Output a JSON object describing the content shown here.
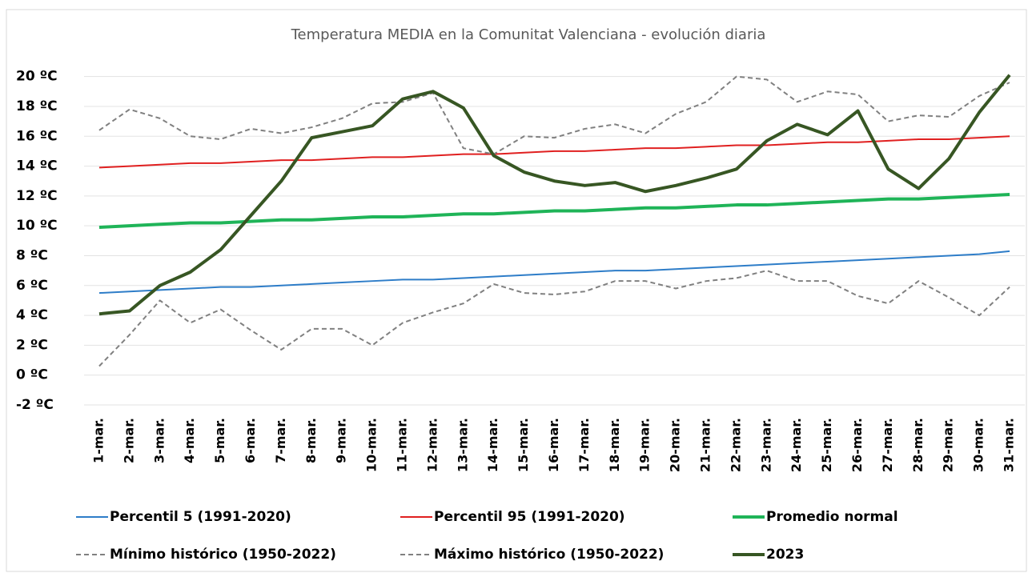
{
  "chart_data": {
    "type": "line",
    "title": "Temperatura MEDIA en la Comunitat Valenciana - evolución diaria",
    "categories": [
      "1-mar.",
      "2-mar.",
      "3-mar.",
      "4-mar.",
      "5-mar.",
      "6-mar.",
      "7-mar.",
      "8-mar.",
      "9-mar.",
      "10-mar.",
      "11-mar.",
      "12-mar.",
      "13-mar.",
      "14-mar.",
      "15-mar.",
      "16-mar.",
      "17-mar.",
      "18-mar.",
      "19-mar.",
      "20-mar.",
      "21-mar.",
      "22-mar.",
      "23-mar.",
      "24-mar.",
      "25-mar.",
      "26-mar.",
      "27-mar.",
      "28-mar.",
      "29-mar.",
      "30-mar.",
      "31-mar."
    ],
    "ylim": [
      -2,
      21
    ],
    "yticks": [
      {
        "value": -2,
        "label": "-2 ºC"
      },
      {
        "value": 0,
        "label": "0 ºC"
      },
      {
        "value": 2,
        "label": "2 ºC"
      },
      {
        "value": 4,
        "label": "4 ºC"
      },
      {
        "value": 6,
        "label": "6 ºC"
      },
      {
        "value": 8,
        "label": "8 ºC"
      },
      {
        "value": 10,
        "label": "10 ºC"
      },
      {
        "value": 12,
        "label": "12 ºC"
      },
      {
        "value": 14,
        "label": "14 ºC"
      },
      {
        "value": 16,
        "label": "16 ºC"
      },
      {
        "value": 18,
        "label": "18 ºC"
      },
      {
        "value": 20,
        "label": "20 ºC"
      }
    ],
    "grid": true,
    "series": [
      {
        "name": "Percentil 5 (1991-2020)",
        "color": "#2e7dc8",
        "width": 2,
        "dashed": false,
        "values": [
          5.5,
          5.6,
          5.7,
          5.8,
          5.9,
          5.9,
          6.0,
          6.1,
          6.2,
          6.3,
          6.4,
          6.4,
          6.5,
          6.6,
          6.7,
          6.8,
          6.9,
          7.0,
          7.0,
          7.1,
          7.2,
          7.3,
          7.4,
          7.5,
          7.6,
          7.7,
          7.8,
          7.9,
          8.0,
          8.1,
          8.3
        ]
      },
      {
        "name": "Percentil 95 (1991-2020)",
        "color": "#e02020",
        "width": 2,
        "dashed": false,
        "values": [
          13.9,
          14.0,
          14.1,
          14.2,
          14.2,
          14.3,
          14.4,
          14.4,
          14.5,
          14.6,
          14.6,
          14.7,
          14.8,
          14.8,
          14.9,
          15.0,
          15.0,
          15.1,
          15.2,
          15.2,
          15.3,
          15.4,
          15.4,
          15.5,
          15.6,
          15.6,
          15.7,
          15.8,
          15.8,
          15.9,
          16.0
        ]
      },
      {
        "name": "Promedio normal",
        "color": "#1fb458",
        "width": 4,
        "dashed": false,
        "values": [
          9.9,
          10.0,
          10.1,
          10.2,
          10.2,
          10.3,
          10.4,
          10.4,
          10.5,
          10.6,
          10.6,
          10.7,
          10.8,
          10.8,
          10.9,
          11.0,
          11.0,
          11.1,
          11.2,
          11.2,
          11.3,
          11.4,
          11.4,
          11.5,
          11.6,
          11.7,
          11.8,
          11.8,
          11.9,
          12.0,
          12.1
        ]
      },
      {
        "name": "Mínimo histórico (1950-2022)",
        "color": "#808080",
        "width": 2,
        "dashed": true,
        "values": [
          0.6,
          2.7,
          5.0,
          3.5,
          4.4,
          3.0,
          1.7,
          3.1,
          3.1,
          2.0,
          3.5,
          4.2,
          4.8,
          6.1,
          5.5,
          5.4,
          5.6,
          6.3,
          6.3,
          5.8,
          6.3,
          6.5,
          7.0,
          6.3,
          6.3,
          5.3,
          4.8,
          6.3,
          5.2,
          4.0,
          5.9
        ]
      },
      {
        "name": "Máximo histórico (1950-2022)",
        "color": "#808080",
        "width": 2,
        "dashed": true,
        "values": [
          16.4,
          17.8,
          17.2,
          16.0,
          15.8,
          16.5,
          16.2,
          16.6,
          17.2,
          18.2,
          18.3,
          18.9,
          15.2,
          14.8,
          16.0,
          15.9,
          16.5,
          16.8,
          16.2,
          17.5,
          18.3,
          20.0,
          19.8,
          18.3,
          19.0,
          18.8,
          17.0,
          17.4,
          17.3,
          18.7,
          19.6
        ]
      },
      {
        "name": "2023",
        "color": "#375623",
        "width": 4,
        "dashed": false,
        "values": [
          4.1,
          4.3,
          6.0,
          6.9,
          8.4,
          10.7,
          13.0,
          15.9,
          16.3,
          16.7,
          18.5,
          19.0,
          17.9,
          14.7,
          13.6,
          13.0,
          12.7,
          12.9,
          12.3,
          12.7,
          13.2,
          13.8,
          15.7,
          16.8,
          16.1,
          17.7,
          13.8,
          12.5,
          14.5,
          17.6,
          20.1
        ]
      }
    ]
  }
}
